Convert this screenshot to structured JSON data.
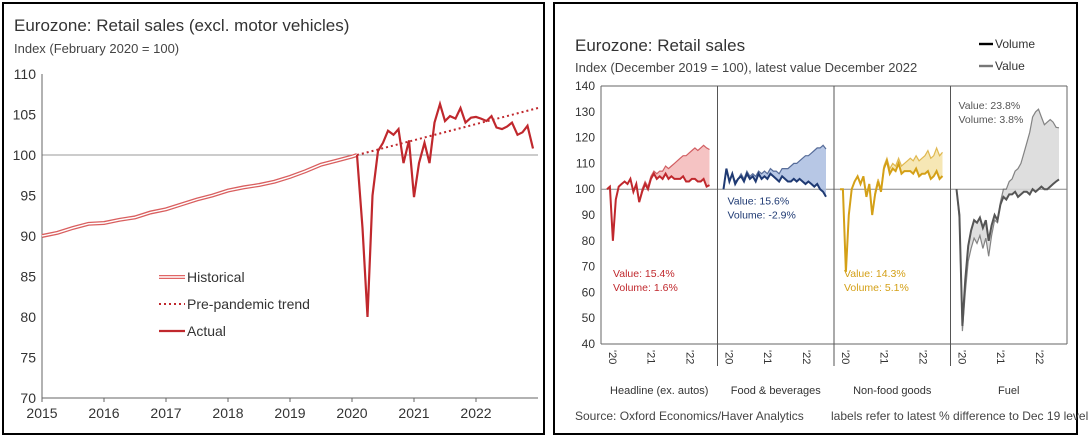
{
  "left_chart": {
    "title": "Eurozone: Retail sales (excl. motor vehicles)",
    "subtitle": "Index (February 2020 = 100)",
    "legend": [
      {
        "label": "Historical",
        "color": "#e06666",
        "style": "double"
      },
      {
        "label": "Pre-pandemic trend",
        "color": "#c0282d",
        "style": "dotted"
      },
      {
        "label": "Actual",
        "color": "#c0282d",
        "style": "solid"
      }
    ]
  },
  "right_chart": {
    "title": "Eurozone: Retail sales",
    "subtitle": "Index (December 2019 = 100), latest value December 2022",
    "legend": [
      {
        "label": "Volume",
        "color": "#000000"
      },
      {
        "label": "Value",
        "color": "#777777"
      }
    ],
    "source": "Source: Oxford Economics/Haver Analytics",
    "note": "labels refer to latest % difference to Dec 19 level"
  },
  "chart_data": [
    {
      "type": "line",
      "title": "Eurozone: Retail sales (excl. motor vehicles)",
      "ylabel": "Index (February 2020 = 100)",
      "ylim": [
        70,
        110
      ],
      "yticks": [
        70,
        75,
        80,
        85,
        90,
        95,
        100,
        105,
        110
      ],
      "xlim": [
        2015,
        2023
      ],
      "xticks": [
        "2015",
        "2016",
        "2017",
        "2018",
        "2019",
        "2020",
        "2021",
        "2022"
      ],
      "reference_line": 100,
      "grid": false,
      "legend_position": "center-left",
      "series": [
        {
          "name": "Historical",
          "x": [
            2015.0,
            2015.25,
            2015.5,
            2015.75,
            2016.0,
            2016.25,
            2016.5,
            2016.75,
            2017.0,
            2017.25,
            2017.5,
            2017.75,
            2018.0,
            2018.25,
            2018.5,
            2018.75,
            2019.0,
            2019.25,
            2019.5,
            2019.75,
            2020.0,
            2020.08
          ],
          "y": [
            90.0,
            90.4,
            91.0,
            91.5,
            91.6,
            92.0,
            92.3,
            92.9,
            93.3,
            93.9,
            94.5,
            95.0,
            95.6,
            96.0,
            96.3,
            96.7,
            97.3,
            98.0,
            98.8,
            99.3,
            99.8,
            100.0
          ]
        },
        {
          "name": "Pre-pandemic trend",
          "x": [
            2020.08,
            2023.0
          ],
          "y": [
            100.0,
            105.8
          ]
        },
        {
          "name": "Actual",
          "x": [
            2020.08,
            2020.17,
            2020.25,
            2020.33,
            2020.42,
            2020.5,
            2020.58,
            2020.67,
            2020.75,
            2020.83,
            2020.92,
            2021.0,
            2021.08,
            2021.17,
            2021.25,
            2021.33,
            2021.42,
            2021.5,
            2021.58,
            2021.67,
            2021.75,
            2021.83,
            2021.92,
            2022.0,
            2022.08,
            2022.17,
            2022.25,
            2022.33,
            2022.42,
            2022.5,
            2022.58,
            2022.67,
            2022.75,
            2022.83,
            2022.92
          ],
          "y": [
            100.0,
            91.0,
            80.0,
            95.0,
            100.5,
            101.5,
            103.0,
            102.5,
            103.2,
            99.0,
            101.8,
            94.8,
            99.0,
            101.5,
            99.0,
            104.0,
            106.3,
            104.2,
            104.8,
            104.5,
            105.8,
            104.0,
            104.6,
            104.7,
            104.5,
            104.2,
            104.8,
            103.4,
            103.2,
            103.5,
            104.0,
            102.5,
            102.8,
            103.6,
            100.8
          ]
        }
      ]
    },
    {
      "type": "area",
      "title": "Eurozone: Retail sales",
      "ylabel": "Index (December 2019 = 100), latest value December 2022",
      "ylim": [
        40,
        140
      ],
      "yticks": [
        40,
        50,
        60,
        70,
        80,
        90,
        100,
        110,
        120,
        130,
        140
      ],
      "x_tick_labels": [
        "'20",
        "'21",
        "'22"
      ],
      "reference_line": 100,
      "grid": false,
      "legend_position": "top-right",
      "panels": [
        {
          "name": "Headline (ex. autos)",
          "color": "#c0282d",
          "fill": "#f3b8b8",
          "value_label": "Value: 15.4%",
          "volume_label": "Volume: 1.6%",
          "volume": [
            100,
            101,
            80,
            96,
            101,
            102,
            103,
            102,
            104,
            99,
            102,
            95,
            99,
            102,
            100,
            104,
            106,
            104,
            105,
            104,
            106,
            104,
            105,
            104,
            104,
            104,
            105,
            103,
            103,
            104,
            104,
            103,
            103,
            104,
            101,
            101.6
          ],
          "value": [
            100,
            101,
            81,
            96,
            101,
            102,
            103,
            102,
            104,
            99,
            102,
            95,
            100,
            103,
            101,
            105,
            107,
            106,
            107,
            107,
            109,
            108,
            109,
            110,
            111,
            112,
            113,
            113,
            114,
            115,
            116,
            115,
            116,
            117,
            116,
            115.4
          ]
        },
        {
          "name": "Food & beverages",
          "color": "#1f3a73",
          "fill": "#aabde0",
          "value_label": "Value: 15.6%",
          "volume_label": "Volume: -2.9%",
          "volume": [
            100,
            108,
            103,
            106,
            102,
            104,
            105,
            103,
            106,
            104,
            105,
            103,
            106,
            104,
            105,
            104,
            106,
            105,
            104,
            103,
            105,
            104,
            103,
            103,
            104,
            103,
            104,
            103,
            102,
            103,
            102,
            101,
            102,
            100,
            99,
            97.1
          ],
          "value": [
            100,
            108,
            103,
            106,
            103,
            104,
            106,
            104,
            107,
            105,
            106,
            105,
            107,
            106,
            107,
            106,
            108,
            107,
            107,
            106,
            108,
            108,
            108,
            109,
            110,
            110,
            111,
            112,
            113,
            113,
            114,
            115,
            116,
            116,
            117,
            115.6
          ]
        },
        {
          "name": "Non-food goods",
          "color": "#d4a017",
          "fill": "#f5e3a8",
          "value_label": "Value: 14.3%",
          "volume_label": "Volume: 5.1%",
          "volume": [
            100,
            100,
            68,
            90,
            100,
            103,
            105,
            102,
            105,
            97,
            102,
            90,
            98,
            103,
            99,
            108,
            111,
            106,
            108,
            107,
            110,
            106,
            107,
            107,
            107,
            106,
            108,
            105,
            106,
            106,
            107,
            104,
            105,
            107,
            104,
            105.1
          ],
          "value": [
            100,
            100,
            68,
            90,
            100,
            103,
            105,
            102,
            105,
            97,
            102,
            90,
            99,
            104,
            100,
            109,
            112,
            108,
            110,
            109,
            112,
            109,
            110,
            111,
            112,
            111,
            113,
            111,
            112,
            113,
            115,
            112,
            113,
            116,
            113,
            114.3
          ]
        },
        {
          "name": "Fuel",
          "color": "#555555",
          "fill": "#d8d8d8",
          "value_label": "Value: 23.8%",
          "volume_label": "Volume: 3.8%",
          "volume": [
            100,
            90,
            47,
            65,
            78,
            84,
            88,
            87,
            89,
            85,
            88,
            80,
            86,
            90,
            88,
            94,
            97,
            96,
            98,
            98,
            99,
            97,
            98,
            99,
            99,
            98,
            100,
            99,
            100,
            101,
            100,
            100,
            101,
            102,
            103,
            103.8
          ],
          "value": [
            100,
            88,
            45,
            60,
            72,
            77,
            81,
            79,
            82,
            77,
            81,
            74,
            82,
            88,
            87,
            95,
            100,
            100,
            103,
            104,
            107,
            108,
            110,
            114,
            118,
            122,
            128,
            130,
            131,
            128,
            125,
            126,
            127,
            126,
            124,
            123.8
          ]
        }
      ]
    }
  ]
}
